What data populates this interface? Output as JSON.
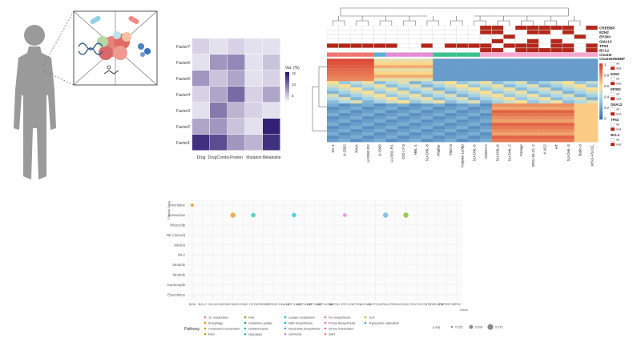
{
  "factor_heatmap": {
    "rows": [
      "Factor7",
      "Factor6",
      "Factor5",
      "Factor4",
      "Factor3",
      "Factor2",
      "Factor1"
    ],
    "cols": [
      "Drug",
      "DrugCombo",
      "Protein",
      "Mutation",
      "Metabolite"
    ],
    "values": [
      [
        2,
        1,
        2,
        1,
        1
      ],
      [
        1,
        6,
        7,
        1,
        3
      ],
      [
        6,
        3,
        5,
        1,
        2
      ],
      [
        2,
        5,
        9,
        2,
        5
      ],
      [
        1,
        8,
        4,
        2,
        1
      ],
      [
        5,
        6,
        3,
        1,
        14
      ],
      [
        13,
        11,
        6,
        4,
        13
      ]
    ],
    "legend_title": "Var. (%)",
    "legend_ticks": [
      "15",
      "10",
      "5"
    ]
  },
  "cluster_heatmap": {
    "samples": [
      "SC-1",
      "U-2932",
      "RIVA",
      "U-2932-R2",
      "U-2940",
      "U-2932-R1",
      "OCI-LY-3",
      "HBL-1",
      "SU-DHL-8",
      "Pfeiffer",
      "TMD-8",
      "Karpas-1106p",
      "SU-DHL-5",
      "DOHH-2",
      "SU-DHL-6",
      "SU-DHL-2",
      "Farage",
      "WSU-DLCL-2",
      "K-422",
      "HT",
      "SU-DHL-4",
      "Balm-3",
      "WSU-FSCCL"
    ],
    "mutation_rows": [
      "CREBBP",
      "EZH2",
      "EP300",
      "GNA13",
      "TP53",
      "BCL2",
      "Cluster"
    ],
    "mutations": [
      [
        0,
        0,
        0,
        0,
        0,
        0,
        0,
        0,
        0,
        0,
        0,
        0,
        0,
        1,
        1,
        0,
        1,
        1,
        1,
        1,
        1,
        0,
        1
      ],
      [
        0,
        0,
        0,
        0,
        0,
        0,
        0,
        0,
        0,
        0,
        0,
        0,
        0,
        1,
        1,
        0,
        0,
        1,
        1,
        0,
        1,
        0,
        0
      ],
      [
        0,
        0,
        0,
        0,
        0,
        0,
        0,
        0,
        0,
        0,
        0,
        0,
        0,
        0,
        0,
        1,
        0,
        0,
        0,
        0,
        0,
        1,
        0
      ],
      [
        0,
        0,
        0,
        0,
        0,
        0,
        0,
        0,
        0,
        0,
        0,
        0,
        0,
        0,
        1,
        0,
        0,
        1,
        0,
        1,
        0,
        0,
        0
      ],
      [
        1,
        1,
        1,
        1,
        1,
        1,
        0,
        0,
        1,
        0,
        1,
        1,
        1,
        1,
        0,
        1,
        1,
        1,
        0,
        1,
        1,
        0,
        1
      ],
      [
        0,
        0,
        0,
        0,
        0,
        0,
        0,
        0,
        0,
        0,
        0,
        0,
        0,
        1,
        1,
        0,
        1,
        1,
        1,
        1,
        1,
        0,
        1
      ]
    ],
    "cluster_colors": [
      "#f0746e",
      "#f0746e",
      "#f0746e",
      "#f0746e",
      "#5ab1d6",
      "#e58bd8",
      "#e58bd8",
      "#e58bd8",
      "#e58bd8",
      "#39c28e",
      "#39c28e",
      "#39c28e",
      "#39c28e",
      "#f9a6cf",
      "#f9a6cf",
      "#f9a6cf",
      "#f9a6cf",
      "#f9a6cf",
      "#f9a6cf",
      "#f9a6cf",
      "#f9a6cf",
      "#f9a6cf",
      "#f9a6cf"
    ],
    "legend": {
      "groups": [
        "CREBBP",
        "EZH2",
        "EP300",
        "GNA13",
        "TP53",
        "BCL2"
      ],
      "wt_label": "wt",
      "mut_label": "mut",
      "cluster_label": "Cluster",
      "scale_ticks": [
        "1",
        "0.8",
        "0.6",
        "0.4",
        "0.2",
        "0"
      ]
    }
  },
  "chart_data": {
    "type": "scatter",
    "title": "",
    "ylabel": "Clinical Drug",
    "xlabel": "Gene",
    "x_categories": [
      "B2M",
      "BCL2",
      "BCL6",
      "CARD11",
      "CCND3",
      "CD58",
      "CIITA",
      "CREBBP",
      "EZH2",
      "GNA13",
      "HIST1H1C",
      "HIST1H1D",
      "HIST1H1E",
      "HIST1H2BK",
      "HVCN1",
      "IRF4",
      "KMT2D",
      "MYD88",
      "NOTCH1",
      "PIM1",
      "PRDM1",
      "SGK1",
      "SOCS1",
      "STAT6",
      "TNFAIP3",
      "TNFRSF14",
      "TP53"
    ],
    "y_categories": [
      "Vincristine",
      "Venetoclax",
      "Ribociclib",
      "NK (Joined)",
      "MK603",
      "MI-2",
      "Ibrutinib",
      "Ibrutinib",
      "Ganetespib",
      "Everolimus"
    ],
    "points": [
      {
        "x": 0,
        "y": "Vincristine",
        "p": 0.026,
        "pathway": "Autophagy"
      },
      {
        "x": 4,
        "y": "Venetoclax",
        "p": 0.05,
        "pathway": "Autophagy"
      },
      {
        "x": 6,
        "y": "Venetoclax",
        "p": 0.04,
        "pathway": "Glycolysis"
      },
      {
        "x": 10,
        "y": "Venetoclax",
        "p": 0.04,
        "pathway": "Lactate metabolism"
      },
      {
        "x": 15,
        "y": "Venetoclax",
        "p": 0.03,
        "pathway": "Purine Biosynthesis"
      },
      {
        "x": 19,
        "y": "Venetoclax",
        "p": 0.05,
        "pathway": "Tryptophan catabolism"
      },
      {
        "x": 21,
        "y": "Venetoclax",
        "p": 0.05,
        "pathway": "FAS"
      }
    ],
    "legend_title": "Pathway",
    "pathways": [
      "1C metabolism",
      "Autophagy",
      "Cholesterol metabolism",
      "FAO",
      "FAS",
      "Glutamine uptake",
      "Glutaminolysis",
      "Glycolysis",
      "Lactate metabolism",
      "NAD biosynthesis",
      "Nucleotide biosynthesis",
      "OXPHOS",
      "PG biosynthesis",
      "Purine Biosynthesis",
      "Serine metabolism",
      "SIRT",
      "TCA",
      "Tryptophan catabolism"
    ],
    "size_legend_title": "p.adj",
    "size_ticks": [
      "0.025",
      "0.050",
      "0.075"
    ]
  },
  "colors": {
    "mut": "#b3261a",
    "wt": "#ffffff",
    "purple_dark": "#25126e",
    "purple_light": "#f2f0f7"
  }
}
